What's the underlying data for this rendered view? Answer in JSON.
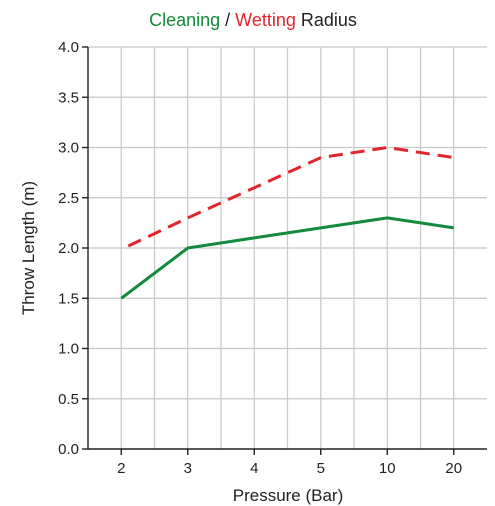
{
  "chart_data": {
    "type": "line",
    "title_parts": [
      {
        "text": "Cleaning",
        "color": "#138a3c"
      },
      {
        "text": " / ",
        "color": "#222222"
      },
      {
        "text": "Wetting",
        "color": "#e0252c"
      },
      {
        "text": " Radius",
        "color": "#222222"
      }
    ],
    "categories": [
      "2",
      "3",
      "4",
      "5",
      "10",
      "20"
    ],
    "xlabel": "Pressure (Bar)",
    "ylabel": "Throw Length (m)",
    "ylim": [
      0,
      4
    ],
    "yticks": [
      "0.0",
      "0.5",
      "1.0",
      "1.5",
      "2.0",
      "2.5",
      "3.0",
      "3.5",
      "4.0"
    ],
    "grid": true,
    "series": [
      {
        "values": [
          1.5,
          2.0,
          2.1,
          2.2,
          2.3,
          2.2
        ],
        "color": "#138a3c",
        "style": "solid"
      },
      {
        "values": [
          2.02,
          2.3,
          2.6,
          2.9,
          3.0,
          2.9
        ],
        "color": "#e0252c",
        "style": "dashed"
      }
    ]
  }
}
